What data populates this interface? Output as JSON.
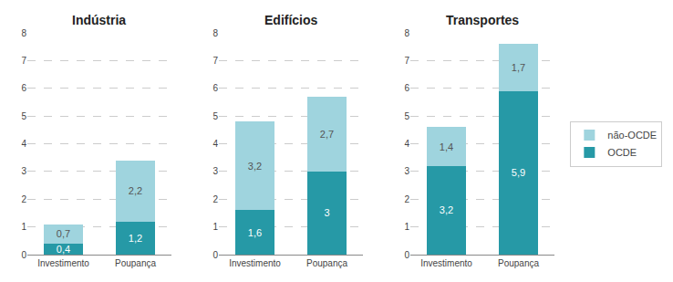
{
  "chart_data": [
    {
      "type": "bar",
      "title": "Indústria",
      "categories": [
        "Investimento",
        "Poupança"
      ],
      "stacked": true,
      "data_labels": true,
      "grid": true,
      "legend": "right",
      "ylim": [
        0,
        8
      ],
      "yticks": [
        0,
        1,
        2,
        3,
        4,
        5,
        6,
        7,
        8
      ],
      "series": [
        {
          "name": "OCDE",
          "color": "#2699a6",
          "values": [
            0.4,
            1.2
          ],
          "value_labels": [
            "0,4",
            "1,2"
          ]
        },
        {
          "name": "não-OCDE",
          "color": "#9fd4de",
          "values": [
            0.7,
            2.2
          ],
          "value_labels": [
            "0,7",
            "2,2"
          ]
        }
      ]
    },
    {
      "type": "bar",
      "title": "Edifícios",
      "categories": [
        "Investimento",
        "Poupança"
      ],
      "stacked": true,
      "data_labels": true,
      "grid": true,
      "legend": "right",
      "ylim": [
        0,
        8
      ],
      "yticks": [
        0,
        1,
        2,
        3,
        4,
        5,
        6,
        7,
        8
      ],
      "series": [
        {
          "name": "OCDE",
          "color": "#2699a6",
          "values": [
            1.6,
            3.0
          ],
          "value_labels": [
            "1,6",
            "3"
          ]
        },
        {
          "name": "não-OCDE",
          "color": "#9fd4de",
          "values": [
            3.2,
            2.7
          ],
          "value_labels": [
            "3,2",
            "2,7"
          ]
        }
      ]
    },
    {
      "type": "bar",
      "title": "Transportes",
      "categories": [
        "Investimento",
        "Poupança"
      ],
      "stacked": true,
      "data_labels": true,
      "grid": true,
      "legend": "right",
      "ylim": [
        0,
        8
      ],
      "yticks": [
        0,
        1,
        2,
        3,
        4,
        5,
        6,
        7,
        8
      ],
      "series": [
        {
          "name": "OCDE",
          "color": "#2699a6",
          "values": [
            3.2,
            5.9
          ],
          "value_labels": [
            "3,2",
            "5,9"
          ]
        },
        {
          "name": "não-OCDE",
          "color": "#9fd4de",
          "values": [
            1.4,
            1.7
          ],
          "value_labels": [
            "1,4",
            "1,7"
          ]
        }
      ]
    }
  ]
}
